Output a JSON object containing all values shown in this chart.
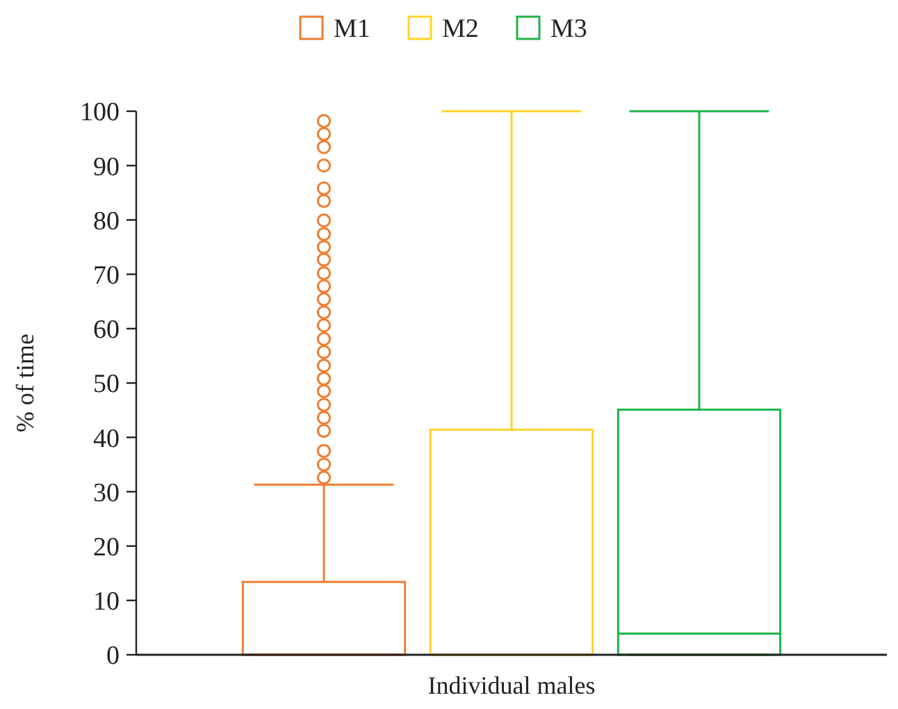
{
  "chart_data": {
    "type": "box",
    "xlabel": "Individual males",
    "ylabel": "% of time",
    "categories": [
      null
    ],
    "ylim": [
      0,
      100
    ],
    "yticks": [
      0,
      10,
      20,
      30,
      40,
      50,
      60,
      70,
      80,
      90,
      100
    ],
    "legend": "top",
    "grid": false,
    "marker": "circle",
    "series": [
      {
        "name": "M1",
        "color": "#ed7d31",
        "boxes": [
          {
            "low": 0,
            "q1": 0,
            "median": 0,
            "q3": 13.4,
            "high": 31.3,
            "outliers": [
              32.6,
              35,
              37.5,
              41.2,
              43.6,
              46,
              48.5,
              50.8,
              53.2,
              55.7,
              58.1,
              60.6,
              63,
              65.4,
              67.8,
              70.2,
              72.7,
              75,
              77.4,
              79.9,
              83.5,
              85.8,
              90,
              93.4,
              95.8,
              98.2
            ]
          }
        ]
      },
      {
        "name": "M2",
        "color": "#ffd42a",
        "boxes": [
          {
            "low": 0,
            "q1": 0,
            "median": 0,
            "q3": 41.4,
            "high": 100
          }
        ]
      },
      {
        "name": "M3",
        "color": "#1fb24a",
        "boxes": [
          {
            "low": 0,
            "q1": 0,
            "median": 3.9,
            "q3": 45.1,
            "high": 100
          }
        ]
      }
    ]
  }
}
